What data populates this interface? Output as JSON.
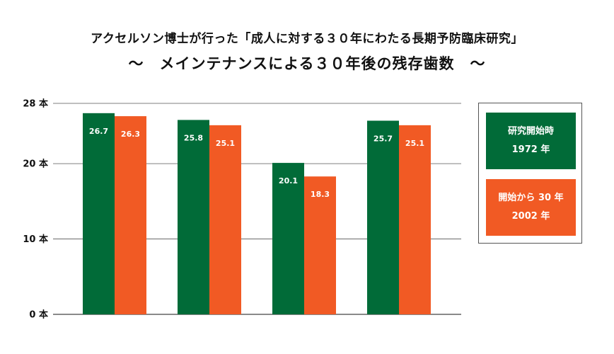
{
  "colors": {
    "start": "#016b38",
    "after": "#f15a24",
    "axis": "#444444",
    "grid": "#555555"
  },
  "chart_data": {
    "type": "bar",
    "title": "アクセルソン博士が行った「成人に対する３０年にわたる長期予防臨床研究」",
    "subtitle": "～　メインテナンスによる３０年後の残存歯数　～",
    "categories": [
      "",
      "",
      "",
      ""
    ],
    "series": [
      {
        "name": "研究開始時 1972 年",
        "values": [
          26.7,
          25.8,
          20.1,
          25.7
        ]
      },
      {
        "name": "開始から 30 年 2002 年",
        "values": [
          26.3,
          25.1,
          18.3,
          25.1
        ]
      }
    ],
    "yticks": [
      "0 本",
      "10 本",
      "20 本",
      "28 本"
    ],
    "ytick_values": [
      0,
      10,
      20,
      28
    ],
    "ylim": [
      0,
      28
    ],
    "grid": true,
    "legend_position": "right"
  },
  "legend": {
    "start": {
      "line1": "研究開始時",
      "line2": "1972 年"
    },
    "after": {
      "line1": "開始から 30 年",
      "line2": "2002 年"
    }
  }
}
